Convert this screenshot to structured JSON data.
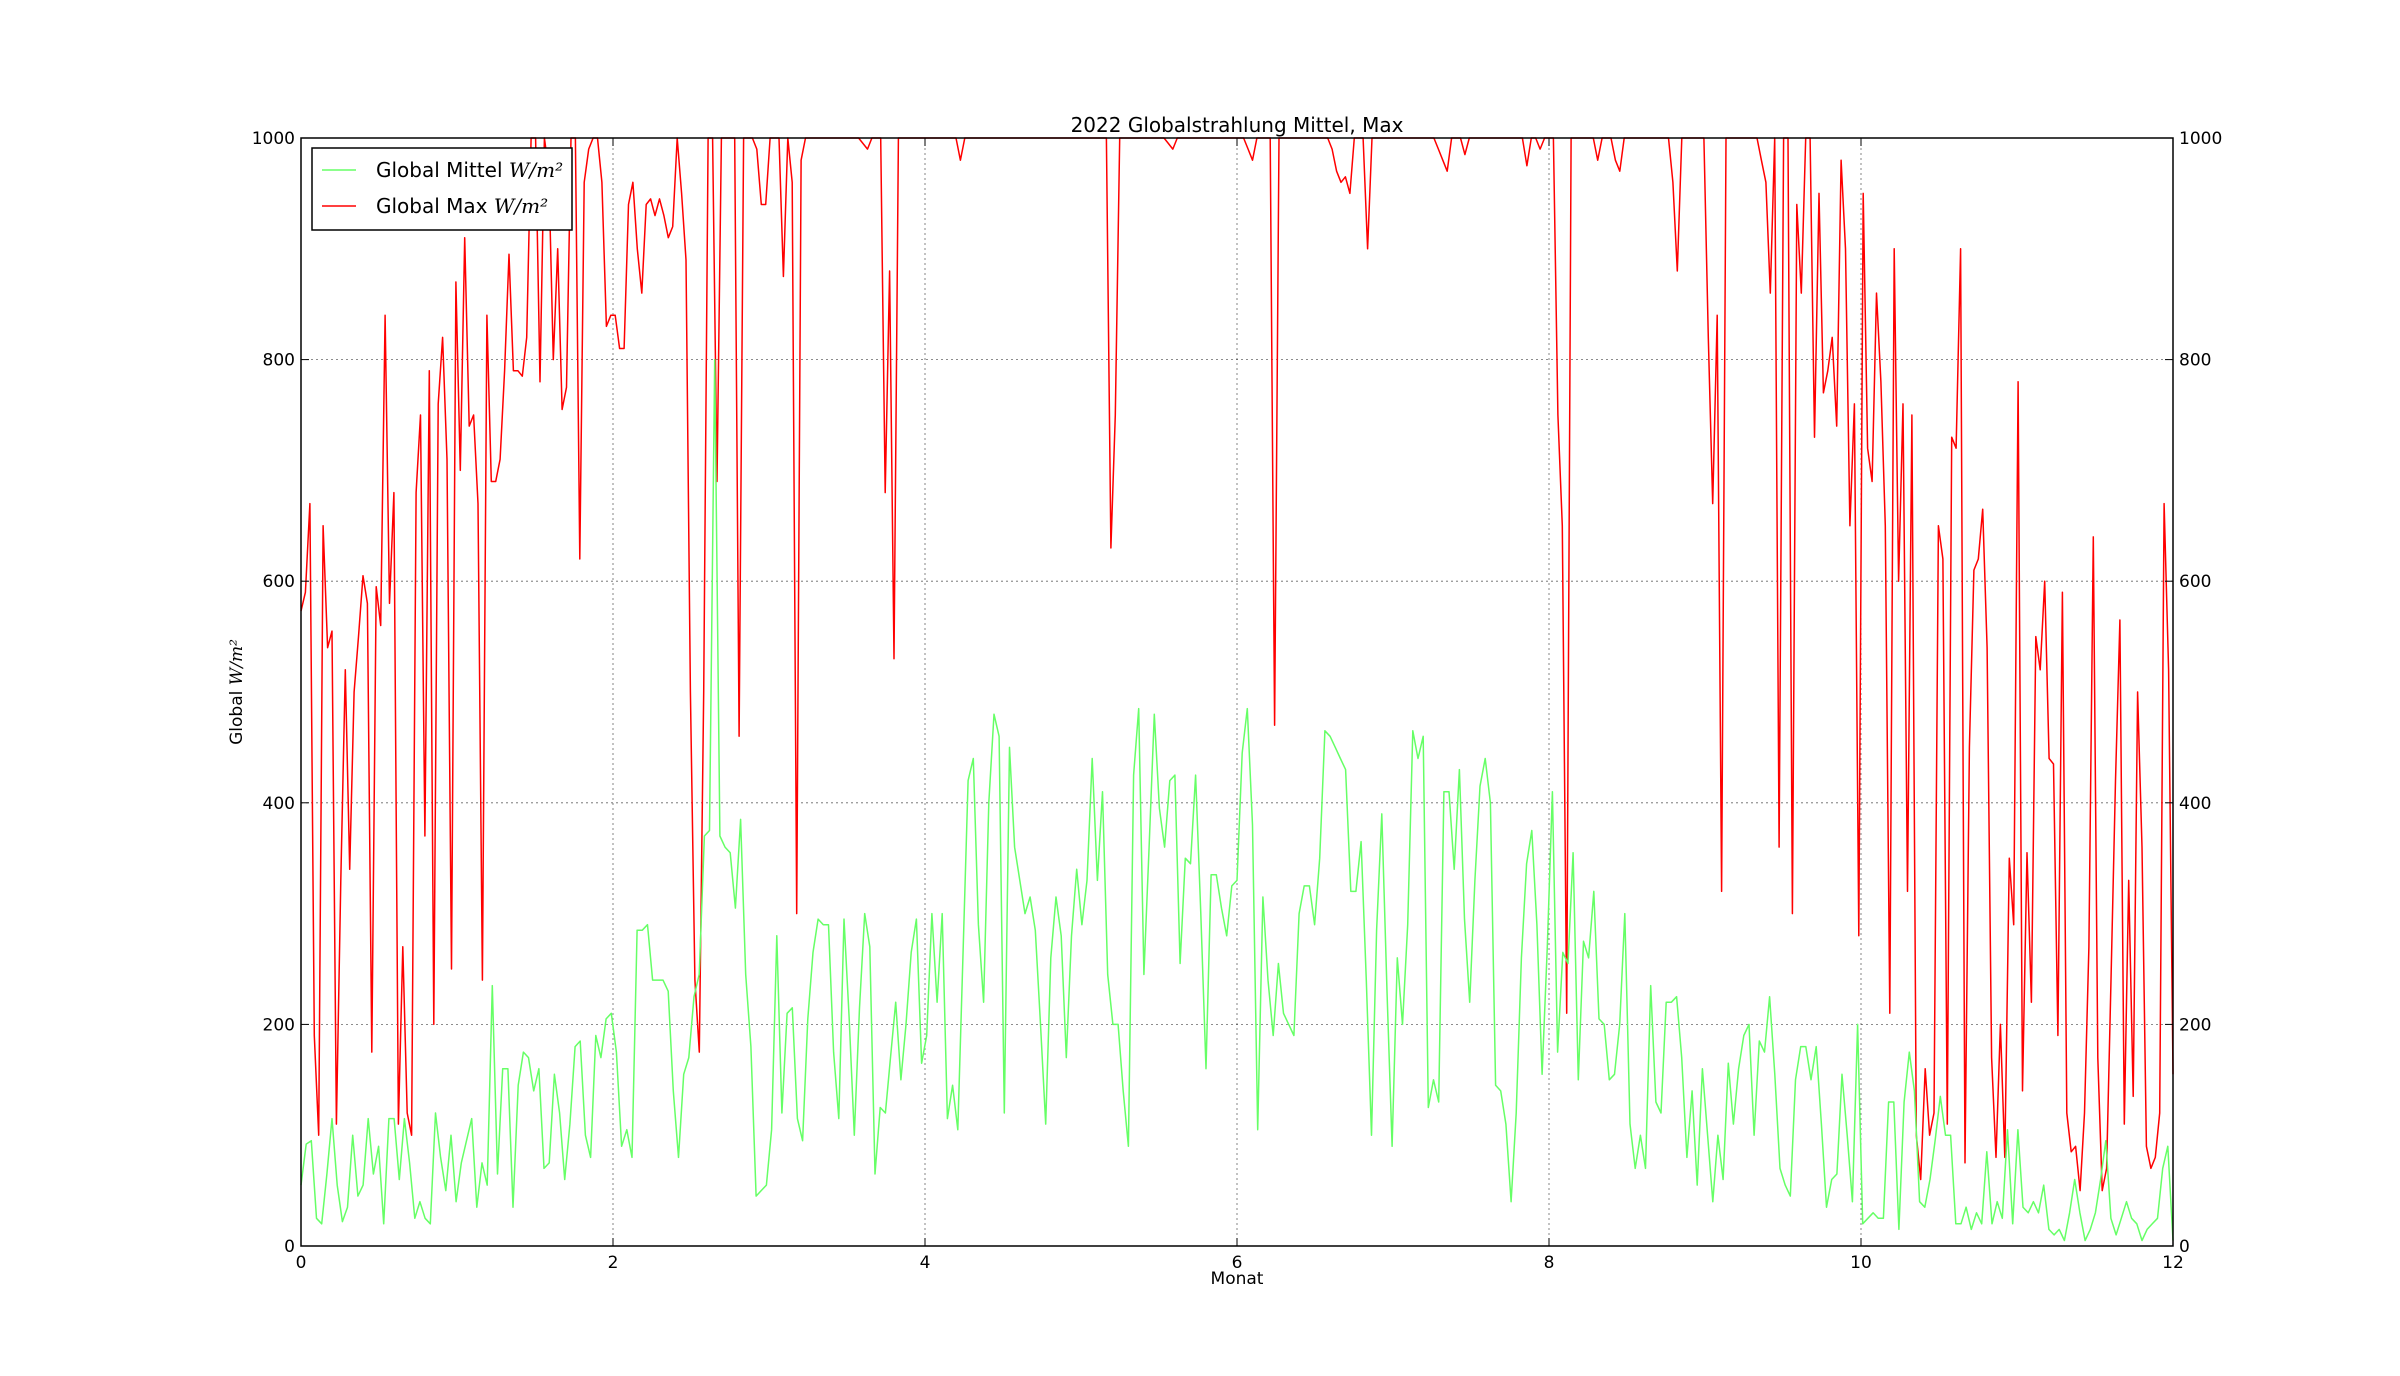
{
  "chart_data": {
    "type": "line",
    "title": "2022 Globalstrahlung Mittel, Max",
    "xlabel": "Monat",
    "ylabel_prefix": "Global",
    "unit_label": "W/m²",
    "xlim": [
      0,
      12
    ],
    "ylim": [
      0,
      1000
    ],
    "xticks": [
      0,
      2,
      4,
      6,
      8,
      10,
      12
    ],
    "yticks": [
      0,
      200,
      400,
      600,
      800,
      1000
    ],
    "grid": true,
    "legend_position": "upper-left",
    "series": [
      {
        "name": "Global Max",
        "color": "#ff0000",
        "values": [
          573,
          590,
          670,
          190,
          100,
          650,
          540,
          555,
          110,
          330,
          520,
          340,
          500,
          550,
          605,
          580,
          175,
          595,
          560,
          840,
          580,
          680,
          110,
          270,
          120,
          100,
          680,
          750,
          370,
          790,
          200,
          760,
          820,
          710,
          250,
          870,
          700,
          910,
          740,
          750,
          670,
          240,
          840,
          690,
          690,
          710,
          790,
          895,
          790,
          790,
          785,
          820,
          1000,
          1000,
          780,
          1000,
          970,
          800,
          900,
          755,
          775,
          1000,
          1000,
          620,
          960,
          990,
          1000,
          1000,
          960,
          830,
          840,
          840,
          810,
          810,
          940,
          960,
          900,
          860,
          940,
          945,
          930,
          945,
          930,
          910,
          920,
          1000,
          950,
          890,
          500,
          240,
          175,
          500,
          1000,
          1000,
          690,
          1000,
          1000,
          1000,
          1000,
          460,
          1000,
          1000,
          1000,
          990,
          940,
          940,
          1000,
          1000,
          1000,
          875,
          1000,
          960,
          300,
          980,
          1000,
          1000,
          1000,
          1000,
          1000,
          1000,
          1000,
          1000,
          1000,
          1000,
          1000,
          1000,
          1000,
          995,
          990,
          1000,
          1000,
          1000,
          680,
          880,
          530,
          1000,
          1000,
          1000,
          1000,
          1000,
          1000,
          1000,
          1000,
          1000,
          1000,
          1000,
          1000,
          1000,
          1000,
          980,
          1000,
          1000,
          1000,
          1000,
          1000,
          1000,
          1000,
          1000,
          1000,
          1000,
          1000,
          1000,
          1000,
          1000,
          1000,
          1000,
          1000,
          1000,
          1000,
          1000,
          1000,
          1000,
          1000,
          1000,
          1000,
          1000,
          1000,
          1000,
          1000,
          1000,
          1000,
          1000,
          1000,
          630,
          750,
          1000,
          1000,
          1000,
          1000,
          1000,
          1000,
          1000,
          1000,
          1000,
          1000,
          1000,
          995,
          990,
          1000,
          1000,
          1000,
          1000,
          1000,
          1000,
          1000,
          1000,
          1000,
          1000,
          1000,
          1000,
          1000,
          1000,
          1000,
          1000,
          990,
          980,
          1000,
          1000,
          1000,
          1000,
          470,
          1000,
          1000,
          1000,
          1000,
          1000,
          1000,
          1000,
          1000,
          1000,
          1000,
          1000,
          1000,
          990,
          970,
          960,
          965,
          950,
          1000,
          1000,
          1000,
          900,
          1000,
          1000,
          1000,
          1000,
          1000,
          1000,
          1000,
          1000,
          1000,
          1000,
          1000,
          1000,
          1000,
          1000,
          1000,
          990,
          980,
          970,
          1000,
          1000,
          1000,
          985,
          1000,
          1000,
          1000,
          1000,
          1000,
          1000,
          1000,
          1000,
          1000,
          1000,
          1000,
          1000,
          1000,
          975,
          1000,
          1000,
          990,
          1000,
          1000,
          1000,
          750,
          650,
          210,
          1000,
          1000,
          1000,
          1000,
          1000,
          1000,
          980,
          1000,
          1000,
          1000,
          980,
          970,
          1000,
          1000,
          1000,
          1000,
          1000,
          1000,
          1000,
          1000,
          1000,
          1000,
          1000,
          960,
          880,
          1000,
          1000,
          1000,
          1000,
          1000,
          1000,
          820,
          670,
          840,
          320,
          1000,
          1000,
          1000,
          1000,
          1000,
          1000,
          1000,
          1000,
          980,
          960,
          860,
          1000,
          360,
          1000,
          1000,
          300,
          940,
          860,
          1000,
          1000,
          730,
          950,
          770,
          790,
          820,
          740,
          980,
          900,
          650,
          760,
          280,
          950,
          720,
          690,
          860,
          780,
          650,
          210,
          900,
          600,
          760,
          320,
          750,
          100,
          60,
          160,
          100,
          120,
          650,
          620,
          110,
          730,
          720,
          900,
          75,
          450,
          610,
          620,
          665,
          540,
          170,
          80,
          200,
          80,
          350,
          290,
          780,
          140,
          355,
          220,
          550,
          520,
          600,
          440,
          435,
          190,
          590,
          120,
          85,
          90,
          50,
          120,
          270,
          640,
          170,
          50,
          70,
          240,
          420,
          565,
          110,
          330,
          135,
          500,
          360,
          90,
          70,
          80,
          120,
          670,
          520,
          155
        ]
      },
      {
        "name": "Global Mittel",
        "color": "#66ff66",
        "values": [
          55,
          92,
          95,
          25,
          20,
          65,
          115,
          55,
          22,
          35,
          100,
          45,
          55,
          115,
          65,
          90,
          20,
          115,
          115,
          60,
          115,
          75,
          25,
          40,
          25,
          20,
          120,
          80,
          50,
          100,
          40,
          75,
          95,
          115,
          35,
          75,
          55,
          235,
          65,
          160,
          160,
          35,
          145,
          175,
          170,
          140,
          160,
          70,
          75,
          155,
          120,
          60,
          110,
          180,
          185,
          100,
          80,
          190,
          170,
          205,
          210,
          175,
          90,
          105,
          80,
          285,
          285,
          290,
          240,
          240,
          240,
          230,
          140,
          80,
          155,
          170,
          225,
          245,
          370,
          375,
          800,
          370,
          360,
          355,
          305,
          385,
          245,
          180,
          45,
          50,
          55,
          105,
          280,
          120,
          210,
          215,
          115,
          95,
          205,
          265,
          295,
          290,
          290,
          175,
          115,
          295,
          205,
          100,
          215,
          300,
          270,
          65,
          125,
          120,
          170,
          220,
          150,
          200,
          265,
          295,
          165,
          190,
          300,
          220,
          300,
          115,
          145,
          105,
          260,
          420,
          440,
          290,
          220,
          400,
          480,
          460,
          120,
          450,
          360,
          330,
          300,
          315,
          285,
          200,
          110,
          260,
          315,
          280,
          170,
          280,
          340,
          290,
          330,
          440,
          330,
          410,
          245,
          200,
          200,
          140,
          90,
          425,
          485,
          245,
          360,
          480,
          395,
          360,
          420,
          425,
          255,
          350,
          345,
          425,
          300,
          160,
          335,
          335,
          305,
          280,
          325,
          330,
          445,
          485,
          380,
          105,
          315,
          240,
          190,
          255,
          210,
          200,
          190,
          300,
          325,
          325,
          290,
          350,
          465,
          460,
          450,
          440,
          430,
          320,
          320,
          365,
          240,
          100,
          285,
          390,
          230,
          90,
          260,
          200,
          290,
          465,
          440,
          460,
          125,
          150,
          130,
          410,
          410,
          340,
          430,
          295,
          220,
          330,
          415,
          440,
          400,
          145,
          140,
          110,
          40,
          120,
          260,
          345,
          375,
          290,
          155,
          270,
          410,
          175,
          265,
          255,
          355,
          150,
          275,
          260,
          320,
          205,
          200,
          150,
          155,
          200,
          300,
          110,
          70,
          100,
          70,
          235,
          130,
          120,
          220,
          220,
          225,
          170,
          80,
          140,
          55,
          160,
          100,
          40,
          100,
          60,
          165,
          110,
          160,
          190,
          200,
          100,
          185,
          175,
          225,
          155,
          70,
          55,
          45,
          150,
          180,
          180,
          150,
          180,
          110,
          35,
          60,
          65,
          155,
          100,
          40,
          200,
          20,
          25,
          30,
          25,
          25,
          130,
          130,
          15,
          130,
          175,
          140,
          40,
          35,
          60,
          95,
          135,
          100,
          100,
          20,
          20,
          35,
          15,
          30,
          20,
          85,
          20,
          40,
          25,
          105,
          20,
          105,
          35,
          30,
          40,
          30,
          55,
          15,
          10,
          15,
          5,
          30,
          60,
          30,
          5,
          15,
          30,
          60,
          95,
          25,
          10,
          25,
          40,
          25,
          20,
          5,
          15,
          20,
          25,
          70,
          90,
          5
        ]
      }
    ]
  }
}
